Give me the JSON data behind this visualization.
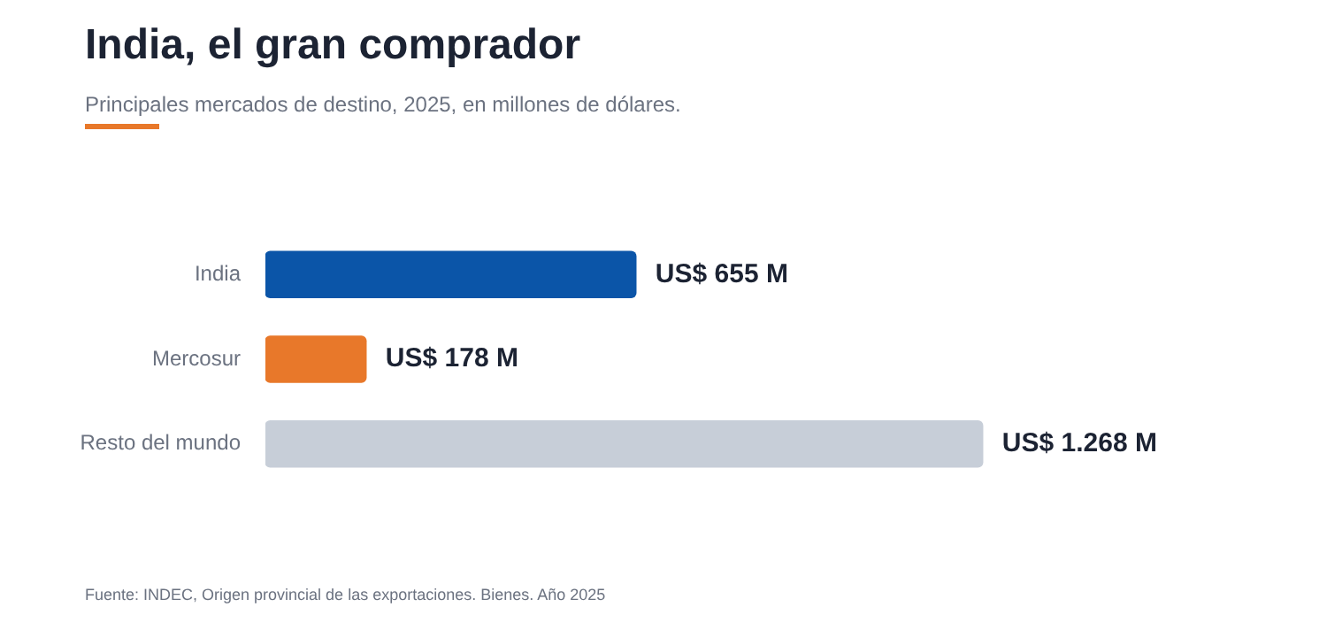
{
  "chart_data": {
    "type": "bar",
    "orientation": "horizontal",
    "title": "India, el gran comprador",
    "subtitle": "Principales mercados de destino, 2025, en millones de dólares.",
    "categories": [
      "India",
      "Mercosur",
      "Resto del mundo"
    ],
    "values": [
      655,
      178,
      1268
    ],
    "colors": [
      "#0b55a8",
      "#e8782a",
      "#c7ced8"
    ],
    "value_labels": [
      "US$ 655 M",
      "US$ 178 M",
      "US$ 1.268 M"
    ],
    "annotations": [
      "Fuente: INDEC, Origen provincial de las exportaciones. Bienes. Año 2025"
    ]
  }
}
